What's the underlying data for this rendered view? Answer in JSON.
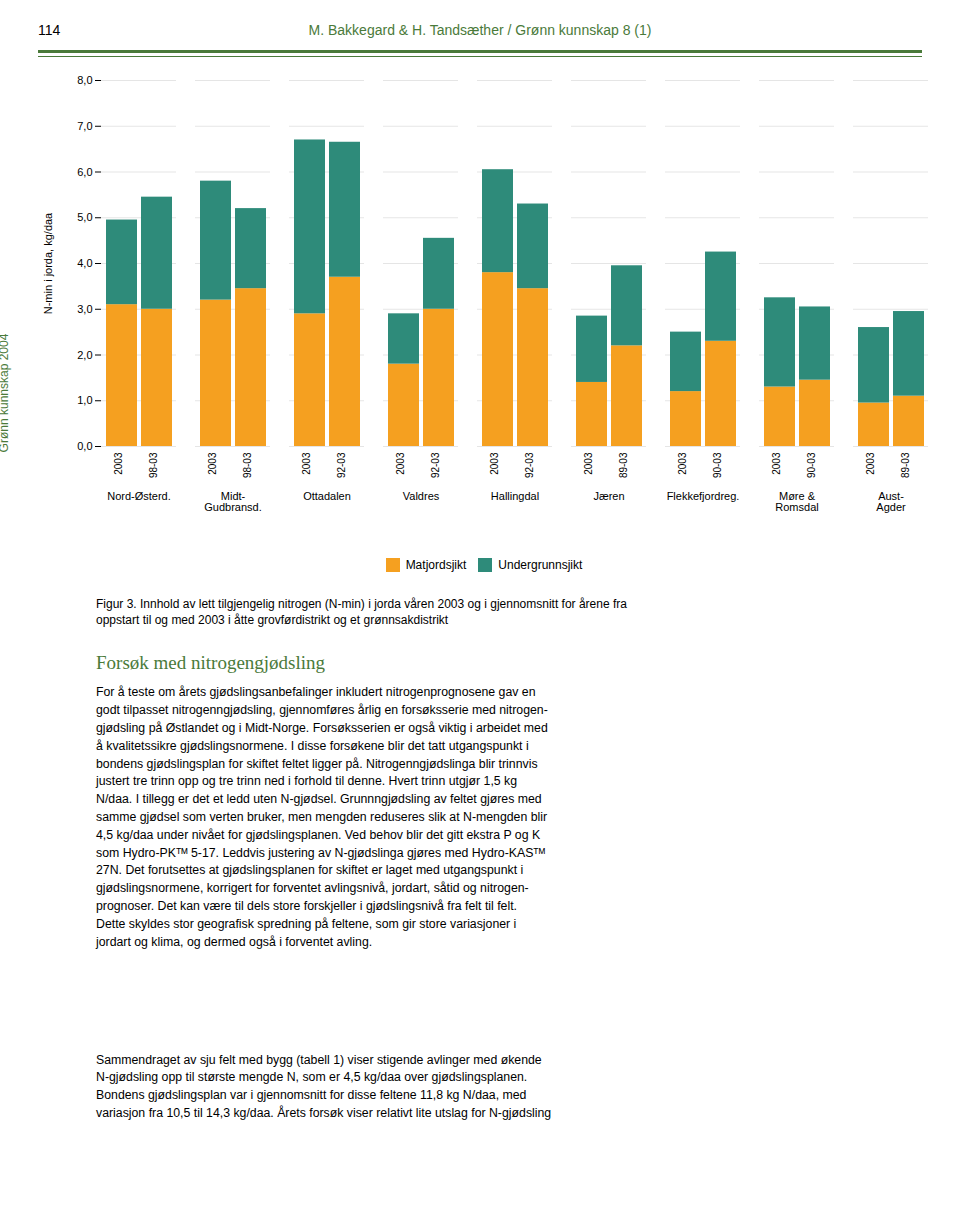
{
  "chart_data": {
    "type": "bar",
    "stacked": true,
    "groups": [
      {
        "name": "Nord-Østerd.",
        "categories": [
          "2003",
          "98-03"
        ]
      },
      {
        "name": "Midt-\nGudbransd.",
        "categories": [
          "2003",
          "98-03"
        ]
      },
      {
        "name": "Ottadalen",
        "categories": [
          "2003",
          "92-03"
        ]
      },
      {
        "name": "Valdres",
        "categories": [
          "2003",
          "92-03"
        ]
      },
      {
        "name": "Hallingdal",
        "categories": [
          "2003",
          "92-03"
        ]
      },
      {
        "name": "Jæren",
        "categories": [
          "2003",
          "89-03"
        ]
      },
      {
        "name": "Flekkefjordreg.",
        "categories": [
          "2003",
          "90-03"
        ]
      },
      {
        "name": "Møre &\nRomsdal",
        "categories": [
          "2003",
          "90-03"
        ]
      },
      {
        "name": "Aust-\nAgder",
        "categories": [
          "2003",
          "89-03"
        ]
      }
    ],
    "series": [
      {
        "name": "Matjordsjikt",
        "color": "#F5A020",
        "values": [
          3.1,
          3.0,
          3.2,
          3.45,
          2.9,
          3.7,
          1.8,
          3.0,
          3.8,
          3.45,
          1.4,
          2.2,
          1.2,
          2.3,
          1.3,
          1.45,
          0.95,
          1.1
        ]
      },
      {
        "name": "Undergrunnsjikt",
        "color": "#2E8B7A",
        "values": [
          1.85,
          2.45,
          2.6,
          1.75,
          3.8,
          2.95,
          1.1,
          1.55,
          2.25,
          1.85,
          1.45,
          1.75,
          1.3,
          1.95,
          1.95,
          1.6,
          1.65,
          1.85
        ]
      }
    ],
    "ylabel": "N-min i jorda, kg/daa",
    "ylim": [
      0.0,
      8.0
    ],
    "yticks": [
      {
        "value": 0.0,
        "label": "0,0"
      },
      {
        "value": 1.0,
        "label": "1,0"
      },
      {
        "value": 2.0,
        "label": "2,0"
      },
      {
        "value": 3.0,
        "label": "3,0"
      },
      {
        "value": 4.0,
        "label": "4,0"
      },
      {
        "value": 5.0,
        "label": "5,0"
      },
      {
        "value": 6.0,
        "label": "6,0"
      },
      {
        "value": 7.0,
        "label": "7,0"
      },
      {
        "value": 8.0,
        "label": "8,0"
      }
    ],
    "grid": true,
    "legend": "bottom",
    "annotations": [
      "114",
      "M. Bakkegard & H. Tandsæther / Grønn kunnskap 8 (1)",
      "Grønn kunnskap 2004",
      "Figur 3. Innhold av lett tilgjengelig nitrogen (N-min) i jorda våren 2003 og i gjennomsnitt for årene fra\noppstart til og med 2003 i åtte grovførdistrikt og et grønnsakdistrikt",
      "Forsøk med nitrogengjødsling",
      "For å teste om årets gjødslingsanbefalinger inkludert nitrogenprognosene gav en\ngodt tilpasset nitrogenngjødsling, gjennomføres årlig en forsøksserie med nitrogen-\ngjødsling på Østlandet og i Midt-Norge. Forsøksserien er også viktig i arbeidet med\nå kvalitetssikre gjødslingsnormene. I disse forsøkene blir det tatt utgangspunkt i\nbondens gjødslingsplan for skiftet feltet ligger på. Nitrogenngjødslinga blir trinnvis\njustert tre trinn opp og tre trinn ned i forhold til denne. Hvert trinn utgjør 1,5 kg\nN/daa. I tillegg er det et ledd uten N-gjødsel. Grunnngjødsling av feltet gjøres med\nsamme gjødsel som verten bruker, men mengden reduseres slik at N-mengden blir\n4,5 kg/daa under nivået for gjødslingsplanen. Ved behov blir det gitt ekstra P og K\nsom Hydro-PKᵀᴹ 5-17. Leddvis justering av N-gjødslinga gjøres med Hydro-KASᵀᴹ\n27N. Det forutsettes at gjødslingsplanen for skiftet er laget med utgangspunkt i\ngjødslingsnormene, korrigert for forventet avlingsnivå, jordart, såtid og nitrogen-\nprognoser. Det kan være til dels store forskjeller i gjødslingsnivå fra felt til felt.\nDette skyldes stor geografisk spredning på feltene, som gir store variasjoner i\njordart og klima, og dermed også i forventet avling.",
      "Sammendraget av sju felt med bygg (tabell 1) viser stigende avlinger med økende\nN-gjødsling opp til største mengde N, som er 4,5 kg/daa over gjødslingsplanen.\nBondens gjødslingsplan var i gjennomsnitt for disse feltene 11,8 kg N/daa, med\nvariasjon fra 10,5 til 14,3 kg/daa. Årets forsøk viser relativt lite utslag for N-gjødsling"
    ]
  }
}
